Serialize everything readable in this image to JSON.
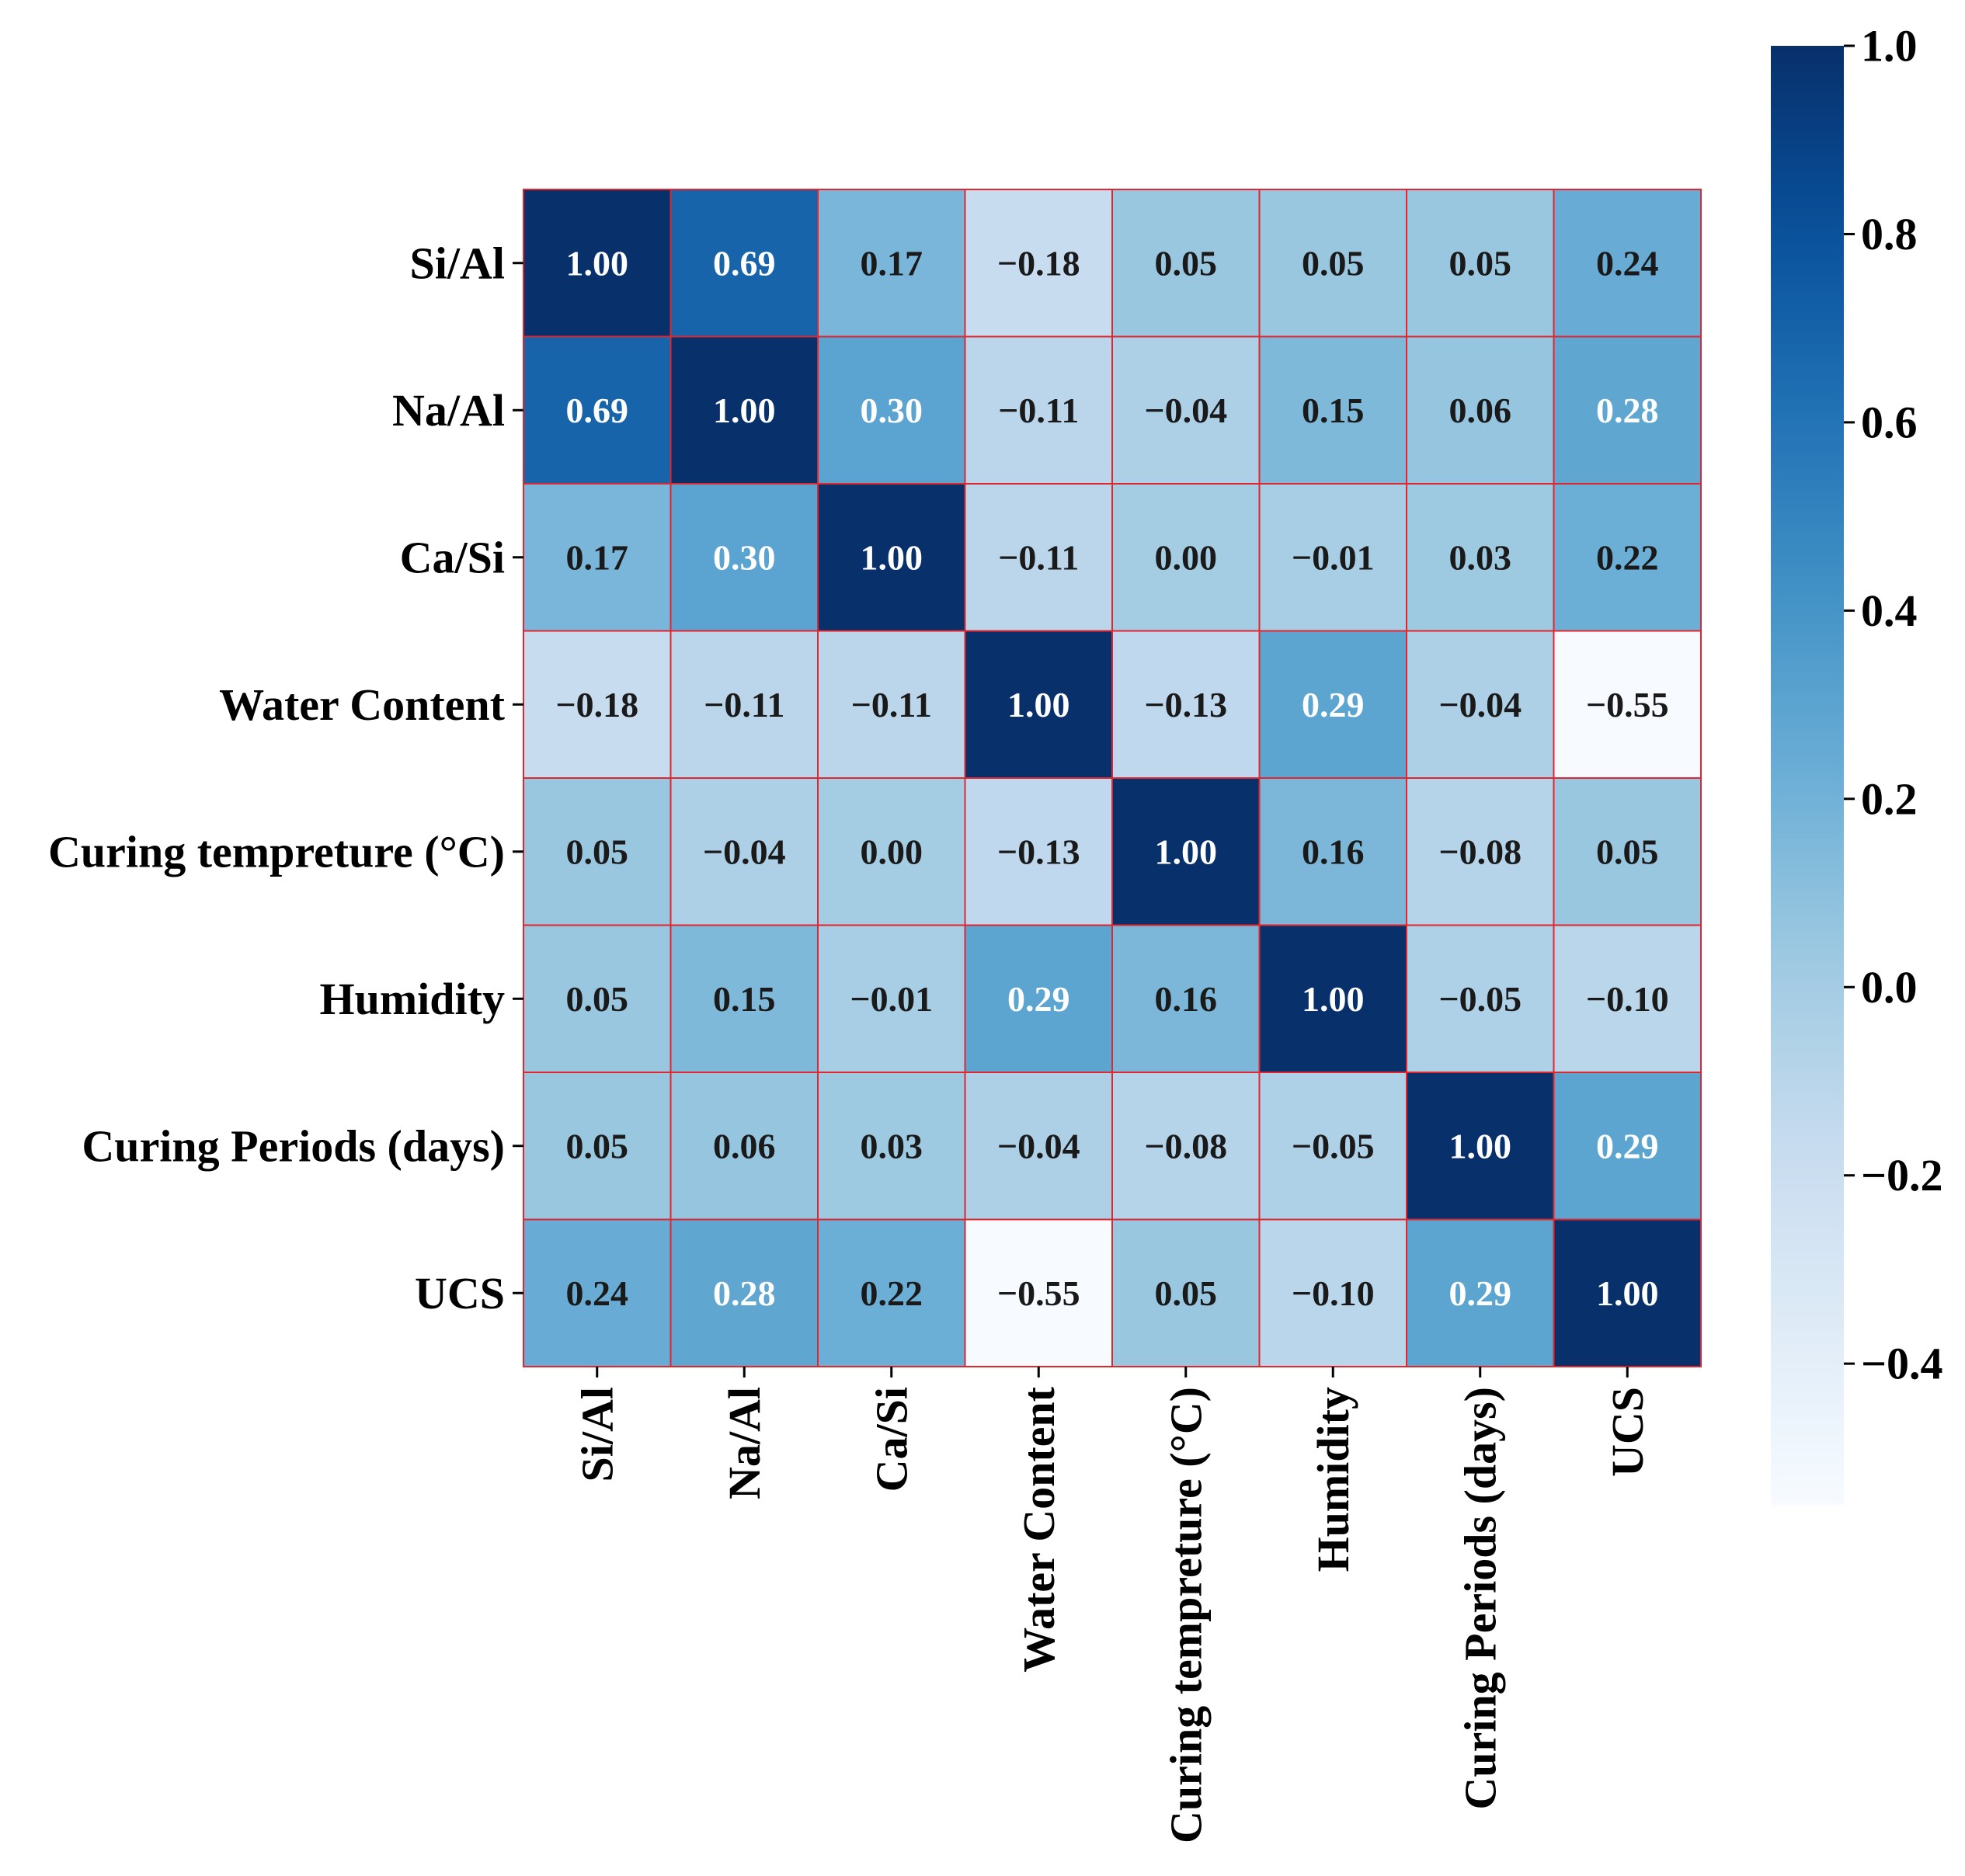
{
  "chart_data": {
    "type": "heatmap",
    "title": "",
    "variables": [
      "Si/Al",
      "Na/Al",
      "Ca/Si",
      "Water Content",
      "Curing tempreture (°C)",
      "Humidity",
      "Curing Periods (days)",
      "UCS"
    ],
    "matrix": [
      [
        1.0,
        0.69,
        0.17,
        -0.18,
        0.05,
        0.05,
        0.05,
        0.24
      ],
      [
        0.69,
        1.0,
        0.3,
        -0.11,
        -0.04,
        0.15,
        0.06,
        0.28
      ],
      [
        0.17,
        0.3,
        1.0,
        -0.11,
        0.0,
        -0.01,
        0.03,
        0.22
      ],
      [
        -0.18,
        -0.11,
        -0.11,
        1.0,
        -0.13,
        0.29,
        -0.04,
        -0.55
      ],
      [
        0.05,
        -0.04,
        0.0,
        -0.13,
        1.0,
        0.16,
        -0.08,
        0.05
      ],
      [
        0.05,
        0.15,
        -0.01,
        0.29,
        0.16,
        1.0,
        -0.05,
        -0.1
      ],
      [
        0.05,
        0.06,
        0.03,
        -0.04,
        -0.08,
        -0.05,
        1.0,
        0.29
      ],
      [
        0.24,
        0.28,
        0.22,
        -0.55,
        0.05,
        -0.1,
        0.29,
        1.0
      ]
    ],
    "annotation_format": "2 decimals, unicode minus",
    "colormap": "Blues",
    "colorbar": {
      "range": [
        -0.55,
        1.0
      ],
      "ticks": [
        1.0,
        0.8,
        0.6,
        0.4,
        0.2,
        0.0,
        -0.2,
        -0.4
      ],
      "tick_labels": [
        "1.0",
        "0.8",
        "0.6",
        "0.4",
        "0.2",
        "0.0",
        "−0.2",
        "−0.4"
      ],
      "placement": "right"
    },
    "cell_border_color": "#e0262e",
    "x_tick_rotation": "vertical"
  }
}
